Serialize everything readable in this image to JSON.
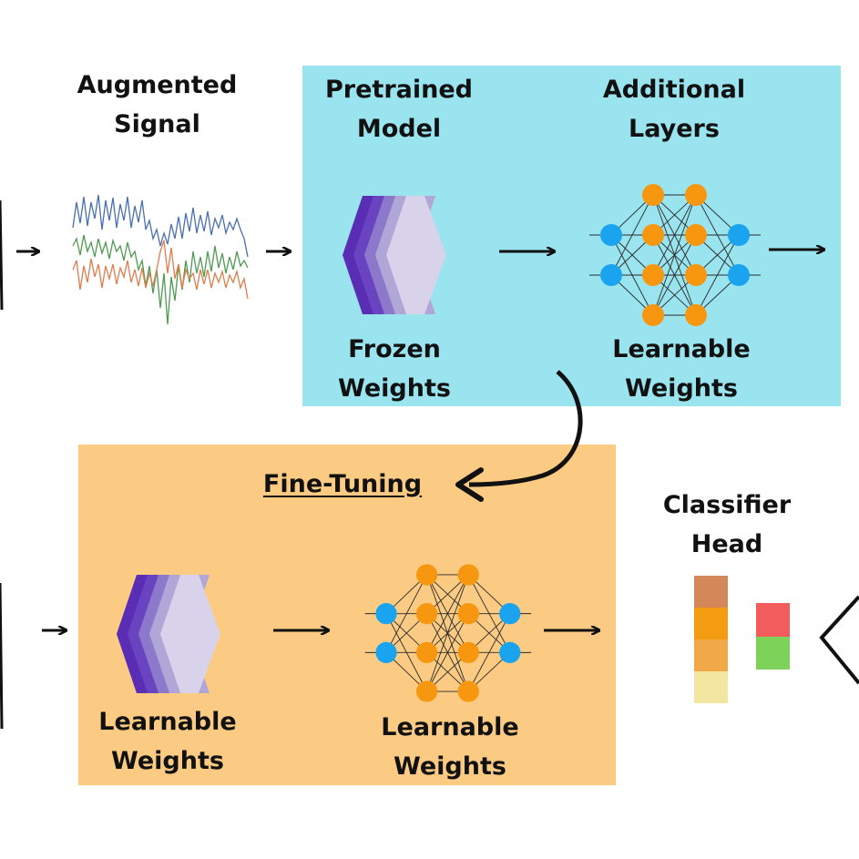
{
  "labels": {
    "augmented_signal_line1": "Augmented",
    "augmented_signal_line2": "Signal",
    "pretrained_line1": "Pretrained",
    "pretrained_line2": "Model",
    "additional_line1": "Additional",
    "additional_line2": "Layers",
    "frozen_line1": "Frozen",
    "frozen_line2": "Weights",
    "learnable_top_line1": "Learnable",
    "learnable_top_line2": "Weights",
    "fine_tuning": "Fine-Tuning",
    "classifier_line1": "Classifier",
    "classifier_line2": "Head",
    "learnable_bottom_left_line1": "Learnable",
    "learnable_bottom_left_line2": "Weights",
    "learnable_bottom_right_line1": "Learnable",
    "learnable_bottom_right_line2": "Weights"
  },
  "colors": {
    "transfer_panel": "#99e4ef",
    "finetune_panel": "#fbcb83",
    "input_neuron": "#1aa3ef",
    "hidden_neuron": "#f7970f",
    "signal_blue": "#4a6fb0",
    "signal_green": "#4e9a52",
    "signal_orange": "#e07c4c",
    "classifier_stack": [
      "#d4885a",
      "#f39c12",
      "#f0a848",
      "#f3e6a0"
    ],
    "classifier_output": [
      "#f25c5c",
      "#7dd35a"
    ]
  },
  "icons": {
    "frozen_model": "layer-stack-icon",
    "trainable_network": "neural-network-icon",
    "finetune_arrow": "curved-arrow-icon"
  }
}
